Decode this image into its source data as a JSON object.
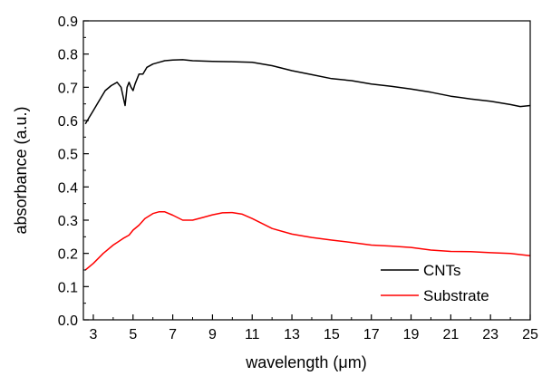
{
  "chart_data": {
    "type": "line",
    "xlabel": "wavelength (μm)",
    "ylabel": "absorbance (a.u.)",
    "xlim": [
      2.5,
      25
    ],
    "ylim": [
      0,
      0.9
    ],
    "x_ticks": [
      3,
      5,
      7,
      9,
      11,
      13,
      15,
      17,
      19,
      21,
      23,
      25
    ],
    "x_tick_labels": [
      "3",
      "5",
      "7",
      "9",
      "11",
      "13",
      "15",
      "17",
      "19",
      "21",
      "23",
      "25"
    ],
    "y_ticks": [
      0,
      0.1,
      0.2,
      0.3,
      0.4,
      0.5,
      0.6,
      0.7,
      0.8,
      0.9
    ],
    "y_tick_labels": [
      "0.0",
      "0.1",
      "0.2",
      "0.3",
      "0.4",
      "0.5",
      "0.6",
      "0.7",
      "0.8",
      "0.9"
    ],
    "grid": false,
    "legend": "bottom-right",
    "series": [
      {
        "name": "CNTs",
        "color": "#000000",
        "x": [
          2.6,
          2.8,
          3.0,
          3.3,
          3.6,
          3.9,
          4.2,
          4.4,
          4.6,
          4.7,
          4.8,
          4.9,
          5.0,
          5.1,
          5.3,
          5.5,
          5.7,
          6.0,
          6.3,
          6.6,
          7.0,
          7.5,
          8.0,
          9.0,
          10.0,
          11.0,
          12.0,
          13.0,
          14.0,
          15.0,
          16.0,
          17.0,
          18.0,
          19.0,
          20.0,
          21.0,
          22.0,
          23.0,
          24.0,
          24.5,
          25.0
        ],
        "values": [
          0.59,
          0.61,
          0.63,
          0.66,
          0.69,
          0.705,
          0.715,
          0.7,
          0.645,
          0.7,
          0.715,
          0.7,
          0.69,
          0.71,
          0.74,
          0.74,
          0.76,
          0.77,
          0.775,
          0.78,
          0.782,
          0.783,
          0.78,
          0.778,
          0.777,
          0.775,
          0.765,
          0.75,
          0.738,
          0.726,
          0.72,
          0.71,
          0.703,
          0.695,
          0.685,
          0.673,
          0.665,
          0.658,
          0.648,
          0.642,
          0.645
        ]
      },
      {
        "name": "Substrate",
        "color": "#ff0000",
        "x": [
          2.6,
          3.0,
          3.5,
          4.0,
          4.5,
          4.8,
          5.0,
          5.3,
          5.6,
          6.0,
          6.3,
          6.6,
          7.0,
          7.5,
          8.0,
          8.5,
          9.0,
          9.5,
          10.0,
          10.5,
          11.0,
          12.0,
          13.0,
          14.0,
          15.0,
          16.0,
          17.0,
          18.0,
          19.0,
          20.0,
          21.0,
          22.0,
          23.0,
          24.0,
          25.0
        ],
        "values": [
          0.15,
          0.17,
          0.2,
          0.225,
          0.245,
          0.255,
          0.27,
          0.285,
          0.305,
          0.32,
          0.325,
          0.325,
          0.315,
          0.3,
          0.3,
          0.308,
          0.316,
          0.322,
          0.323,
          0.318,
          0.305,
          0.275,
          0.258,
          0.248,
          0.24,
          0.233,
          0.225,
          0.222,
          0.218,
          0.21,
          0.206,
          0.205,
          0.202,
          0.2,
          0.193
        ]
      }
    ]
  }
}
